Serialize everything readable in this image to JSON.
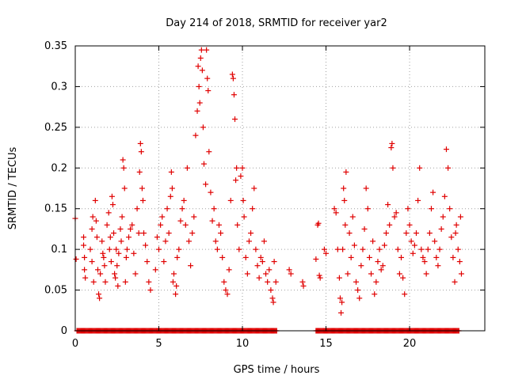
{
  "chart_data": {
    "type": "scatter",
    "title": "Day 214 of 2018, SRMTID for receiver yar2",
    "xlabel": "GPS time / hours",
    "ylabel": "SRMTID / TECUs",
    "xlim": [
      0,
      24.5
    ],
    "ylim": [
      0,
      0.35
    ],
    "x_ticks": [
      0,
      5,
      10,
      15,
      20
    ],
    "x_tick_labels": [
      "0",
      "5",
      "10",
      "15",
      "20"
    ],
    "y_ticks": [
      0,
      0.05,
      0.1,
      0.15,
      0.2,
      0.25,
      0.3,
      0.35
    ],
    "y_tick_labels": [
      "0",
      "0.05",
      "0.1",
      "0.15",
      "0.2",
      "0.25",
      "0.3",
      "0.35"
    ],
    "grid": true,
    "marker": "+",
    "color": "#e00000",
    "series": [
      {
        "name": "SRMTID",
        "points": [
          [
            0.0,
            0.138
          ],
          [
            0.05,
            0.088
          ],
          [
            0.5,
            0.105
          ],
          [
            0.5,
            0.115
          ],
          [
            0.55,
            0.09
          ],
          [
            0.55,
            0.075
          ],
          [
            0.6,
            0.065
          ],
          [
            0.9,
            0.1
          ],
          [
            1.0,
            0.125
          ],
          [
            1.0,
            0.085
          ],
          [
            1.05,
            0.14
          ],
          [
            1.1,
            0.06
          ],
          [
            1.2,
            0.16
          ],
          [
            1.25,
            0.135
          ],
          [
            1.3,
            0.115
          ],
          [
            1.35,
            0.075
          ],
          [
            1.4,
            0.045
          ],
          [
            1.45,
            0.04
          ],
          [
            1.5,
            0.07
          ],
          [
            1.6,
            0.11
          ],
          [
            1.65,
            0.095
          ],
          [
            1.7,
            0.09
          ],
          [
            1.75,
            0.08
          ],
          [
            1.8,
            0.06
          ],
          [
            1.9,
            0.13
          ],
          [
            2.0,
            0.145
          ],
          [
            2.05,
            0.1
          ],
          [
            2.1,
            0.115
          ],
          [
            2.15,
            0.085
          ],
          [
            2.2,
            0.165
          ],
          [
            2.25,
            0.155
          ],
          [
            2.3,
            0.12
          ],
          [
            2.35,
            0.07
          ],
          [
            2.4,
            0.065
          ],
          [
            2.45,
            0.1
          ],
          [
            2.5,
            0.08
          ],
          [
            2.55,
            0.055
          ],
          [
            2.6,
            0.095
          ],
          [
            2.7,
            0.125
          ],
          [
            2.75,
            0.11
          ],
          [
            2.8,
            0.14
          ],
          [
            2.85,
            0.21
          ],
          [
            2.9,
            0.2
          ],
          [
            2.95,
            0.175
          ],
          [
            3.0,
            0.06
          ],
          [
            3.05,
            0.09
          ],
          [
            3.1,
            0.1
          ],
          [
            3.2,
            0.115
          ],
          [
            3.3,
            0.125
          ],
          [
            3.4,
            0.13
          ],
          [
            3.5,
            0.095
          ],
          [
            3.6,
            0.07
          ],
          [
            3.7,
            0.15
          ],
          [
            3.8,
            0.12
          ],
          [
            3.85,
            0.195
          ],
          [
            3.9,
            0.23
          ],
          [
            3.95,
            0.22
          ],
          [
            4.0,
            0.175
          ],
          [
            4.05,
            0.16
          ],
          [
            4.1,
            0.12
          ],
          [
            4.2,
            0.105
          ],
          [
            4.3,
            0.085
          ],
          [
            4.4,
            0.06
          ],
          [
            4.5,
            0.05
          ],
          [
            4.8,
            0.075
          ],
          [
            4.9,
            0.115
          ],
          [
            5.0,
            0.1
          ],
          [
            5.1,
            0.13
          ],
          [
            5.2,
            0.14
          ],
          [
            5.3,
            0.085
          ],
          [
            5.4,
            0.11
          ],
          [
            5.5,
            0.15
          ],
          [
            5.6,
            0.12
          ],
          [
            5.7,
            0.165
          ],
          [
            5.75,
            0.195
          ],
          [
            5.8,
            0.175
          ],
          [
            5.85,
            0.06
          ],
          [
            5.9,
            0.07
          ],
          [
            6.0,
            0.045
          ],
          [
            6.05,
            0.055
          ],
          [
            6.1,
            0.09
          ],
          [
            6.2,
            0.1
          ],
          [
            6.3,
            0.135
          ],
          [
            6.4,
            0.15
          ],
          [
            6.5,
            0.16
          ],
          [
            6.6,
            0.13
          ],
          [
            6.7,
            0.2
          ],
          [
            6.8,
            0.11
          ],
          [
            6.9,
            0.08
          ],
          [
            7.0,
            0.12
          ],
          [
            7.1,
            0.14
          ],
          [
            7.2,
            0.24
          ],
          [
            7.3,
            0.27
          ],
          [
            7.35,
            0.325
          ],
          [
            7.4,
            0.3
          ],
          [
            7.45,
            0.28
          ],
          [
            7.5,
            0.335
          ],
          [
            7.55,
            0.345
          ],
          [
            7.6,
            0.32
          ],
          [
            7.65,
            0.25
          ],
          [
            7.7,
            0.205
          ],
          [
            7.8,
            0.18
          ],
          [
            7.85,
            0.345
          ],
          [
            7.9,
            0.31
          ],
          [
            7.95,
            0.295
          ],
          [
            8.0,
            0.22
          ],
          [
            8.1,
            0.17
          ],
          [
            8.2,
            0.135
          ],
          [
            8.3,
            0.15
          ],
          [
            8.4,
            0.11
          ],
          [
            8.5,
            0.1
          ],
          [
            8.6,
            0.13
          ],
          [
            8.7,
            0.12
          ],
          [
            8.8,
            0.09
          ],
          [
            8.9,
            0.06
          ],
          [
            9.0,
            0.05
          ],
          [
            9.1,
            0.045
          ],
          [
            9.2,
            0.075
          ],
          [
            9.3,
            0.16
          ],
          [
            9.4,
            0.315
          ],
          [
            9.45,
            0.31
          ],
          [
            9.5,
            0.29
          ],
          [
            9.55,
            0.26
          ],
          [
            9.6,
            0.185
          ],
          [
            9.65,
            0.2
          ],
          [
            9.7,
            0.13
          ],
          [
            9.8,
            0.1
          ],
          [
            9.9,
            0.19
          ],
          [
            10.0,
            0.2
          ],
          [
            10.05,
            0.16
          ],
          [
            10.1,
            0.14
          ],
          [
            10.2,
            0.09
          ],
          [
            10.3,
            0.07
          ],
          [
            10.4,
            0.11
          ],
          [
            10.5,
            0.12
          ],
          [
            10.6,
            0.15
          ],
          [
            10.7,
            0.175
          ],
          [
            10.8,
            0.1
          ],
          [
            10.9,
            0.08
          ],
          [
            11.0,
            0.065
          ],
          [
            11.1,
            0.09
          ],
          [
            11.2,
            0.085
          ],
          [
            11.3,
            0.11
          ],
          [
            11.4,
            0.07
          ],
          [
            11.5,
            0.06
          ],
          [
            11.6,
            0.075
          ],
          [
            11.7,
            0.05
          ],
          [
            11.8,
            0.04
          ],
          [
            11.85,
            0.035
          ],
          [
            11.9,
            0.085
          ],
          [
            12.0,
            0.06
          ],
          [
            12.8,
            0.075
          ],
          [
            12.9,
            0.07
          ],
          [
            13.6,
            0.06
          ],
          [
            13.65,
            0.055
          ],
          [
            14.4,
            0.088
          ],
          [
            14.5,
            0.13
          ],
          [
            14.55,
            0.132
          ],
          [
            14.6,
            0.068
          ],
          [
            14.65,
            0.065
          ],
          [
            14.9,
            0.1
          ],
          [
            15.0,
            0.095
          ],
          [
            15.5,
            0.15
          ],
          [
            15.6,
            0.145
          ],
          [
            15.7,
            0.1
          ],
          [
            15.8,
            0.065
          ],
          [
            15.85,
            0.04
          ],
          [
            15.9,
            0.022
          ],
          [
            15.95,
            0.035
          ],
          [
            16.0,
            0.1
          ],
          [
            16.05,
            0.175
          ],
          [
            16.1,
            0.16
          ],
          [
            16.15,
            0.13
          ],
          [
            16.2,
            0.195
          ],
          [
            16.3,
            0.07
          ],
          [
            16.4,
            0.12
          ],
          [
            16.5,
            0.09
          ],
          [
            16.6,
            0.14
          ],
          [
            16.7,
            0.105
          ],
          [
            16.8,
            0.06
          ],
          [
            16.9,
            0.05
          ],
          [
            17.0,
            0.04
          ],
          [
            17.1,
            0.08
          ],
          [
            17.2,
            0.1
          ],
          [
            17.3,
            0.125
          ],
          [
            17.4,
            0.175
          ],
          [
            17.5,
            0.15
          ],
          [
            17.6,
            0.09
          ],
          [
            17.7,
            0.07
          ],
          [
            17.8,
            0.11
          ],
          [
            17.9,
            0.045
          ],
          [
            18.0,
            0.06
          ],
          [
            18.1,
            0.085
          ],
          [
            18.2,
            0.1
          ],
          [
            18.3,
            0.075
          ],
          [
            18.4,
            0.08
          ],
          [
            18.5,
            0.105
          ],
          [
            18.6,
            0.12
          ],
          [
            18.7,
            0.155
          ],
          [
            18.8,
            0.13
          ],
          [
            18.9,
            0.225
          ],
          [
            18.95,
            0.23
          ],
          [
            19.0,
            0.2
          ],
          [
            19.1,
            0.14
          ],
          [
            19.2,
            0.145
          ],
          [
            19.3,
            0.1
          ],
          [
            19.4,
            0.07
          ],
          [
            19.5,
            0.09
          ],
          [
            19.6,
            0.065
          ],
          [
            19.7,
            0.045
          ],
          [
            19.8,
            0.12
          ],
          [
            19.9,
            0.15
          ],
          [
            20.0,
            0.13
          ],
          [
            20.1,
            0.11
          ],
          [
            20.2,
            0.095
          ],
          [
            20.3,
            0.105
          ],
          [
            20.4,
            0.12
          ],
          [
            20.5,
            0.16
          ],
          [
            20.6,
            0.2
          ],
          [
            20.7,
            0.1
          ],
          [
            20.8,
            0.09
          ],
          [
            20.9,
            0.085
          ],
          [
            21.0,
            0.07
          ],
          [
            21.1,
            0.1
          ],
          [
            21.2,
            0.12
          ],
          [
            21.3,
            0.15
          ],
          [
            21.4,
            0.17
          ],
          [
            21.5,
            0.11
          ],
          [
            21.6,
            0.09
          ],
          [
            21.7,
            0.08
          ],
          [
            21.8,
            0.1
          ],
          [
            21.9,
            0.125
          ],
          [
            22.0,
            0.14
          ],
          [
            22.1,
            0.165
          ],
          [
            22.2,
            0.223
          ],
          [
            22.3,
            0.2
          ],
          [
            22.4,
            0.15
          ],
          [
            22.5,
            0.115
          ],
          [
            22.6,
            0.09
          ],
          [
            22.7,
            0.06
          ],
          [
            22.75,
            0.12
          ],
          [
            22.8,
            0.13
          ],
          [
            22.9,
            0.1
          ],
          [
            23.0,
            0.085
          ],
          [
            23.05,
            0.14
          ],
          [
            23.1,
            0.07
          ]
        ],
        "zero_segments": [
          [
            0.1,
            12.1
          ],
          [
            14.4,
            23.0
          ]
        ]
      }
    ]
  }
}
